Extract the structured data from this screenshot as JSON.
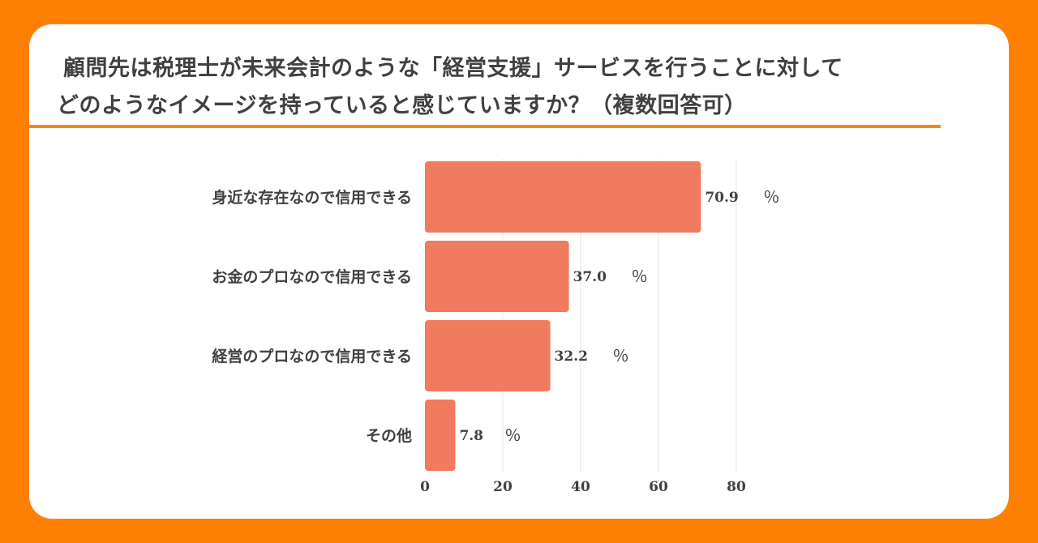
{
  "header": {
    "title_line1": "顧問先は税理士が未来会計のような「経営支援」サービスを行うことに対して",
    "title_line2": "どのようなイメージを持っていると感じていますか？（複数回答可）"
  },
  "colors": {
    "background": "#FF8000",
    "card": "#FFFFFF",
    "bar": "#F07B5F",
    "rule": "#F08A1E",
    "text": "#404040",
    "grid": "#E3E3E3"
  },
  "chart_data": {
    "type": "bar",
    "orientation": "horizontal",
    "categories": [
      "身近な存在なので信用できる",
      "お金のプロなので信用できる",
      "経営のプロなので信用できる",
      "その他"
    ],
    "values": [
      70.9,
      37.0,
      32.2,
      7.8
    ],
    "value_labels": [
      "70.9",
      "37.0",
      "32.2",
      "7.8"
    ],
    "unit": "％",
    "xlim": [
      0,
      80
    ],
    "xticks": [
      "0",
      "20",
      "40",
      "60",
      "80"
    ],
    "grid": true
  }
}
